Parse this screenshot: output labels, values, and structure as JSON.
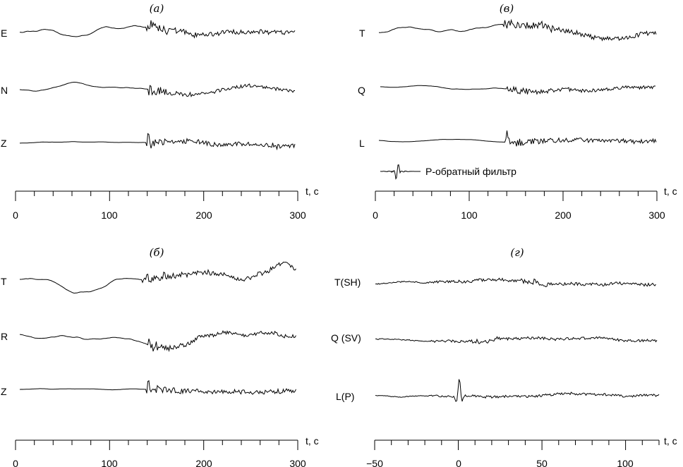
{
  "figure": {
    "panels": [
      {
        "id": "a",
        "title": "(a)",
        "traces": [
          "E",
          "N",
          "Z"
        ],
        "axis": {
          "unit": "t, c",
          "ticks": [
            "0",
            "100",
            "200",
            "300"
          ],
          "range": [
            0,
            300
          ]
        }
      },
      {
        "id": "v",
        "title": "(в)",
        "traces": [
          "T",
          "Q",
          "L"
        ],
        "filter_label": "P-обратный фильтр",
        "axis": {
          "unit": "t, c",
          "ticks": [
            "0",
            "100",
            "200",
            "300"
          ],
          "range": [
            0,
            300
          ]
        }
      },
      {
        "id": "b",
        "title": "(б)",
        "traces": [
          "T",
          "R",
          "Z"
        ],
        "axis": {
          "unit": "t, c",
          "ticks": [
            "0",
            "100",
            "200",
            "300"
          ],
          "range": [
            0,
            300
          ]
        }
      },
      {
        "id": "g",
        "title": "(г)",
        "traces": [
          "T(SH)",
          "Q (SV)",
          "L(P)"
        ],
        "axis": {
          "unit": "t, c",
          "ticks": [
            "−50",
            "0",
            "50",
            "100"
          ],
          "range": [
            -50,
            120
          ]
        }
      }
    ]
  }
}
